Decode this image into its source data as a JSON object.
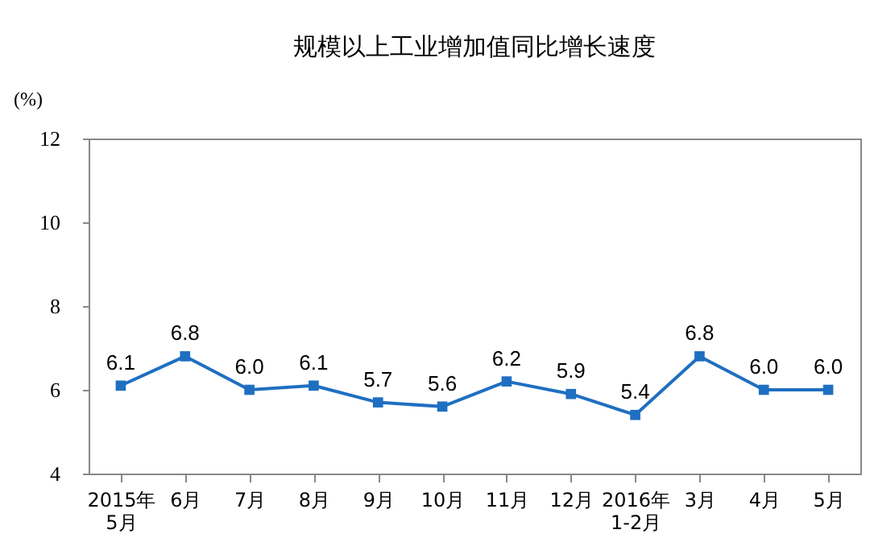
{
  "chart_data": {
    "type": "line",
    "title": "规模以上工业增加值同比增长速度",
    "ylabel": "(%)",
    "categories": [
      "2015年\n5月",
      "6月",
      "7月",
      "8月",
      "9月",
      "10月",
      "11月",
      "12月",
      "2016年\n1-2月",
      "3月",
      "4月",
      "5月"
    ],
    "values": [
      6.1,
      6.8,
      6.0,
      6.1,
      5.7,
      5.6,
      6.2,
      5.9,
      5.4,
      6.8,
      6.0,
      6.0
    ],
    "value_labels": [
      "6.1",
      "6.8",
      "6.0",
      "6.1",
      "5.7",
      "5.6",
      "6.2",
      "5.9",
      "5.4",
      "6.8",
      "6.0",
      "6.0"
    ],
    "color": "#1f6fc1",
    "ylim": [
      4,
      12
    ],
    "yticks": [
      4,
      6,
      8,
      10,
      12
    ],
    "grid": false,
    "marker": "square",
    "line_style": "solid"
  }
}
